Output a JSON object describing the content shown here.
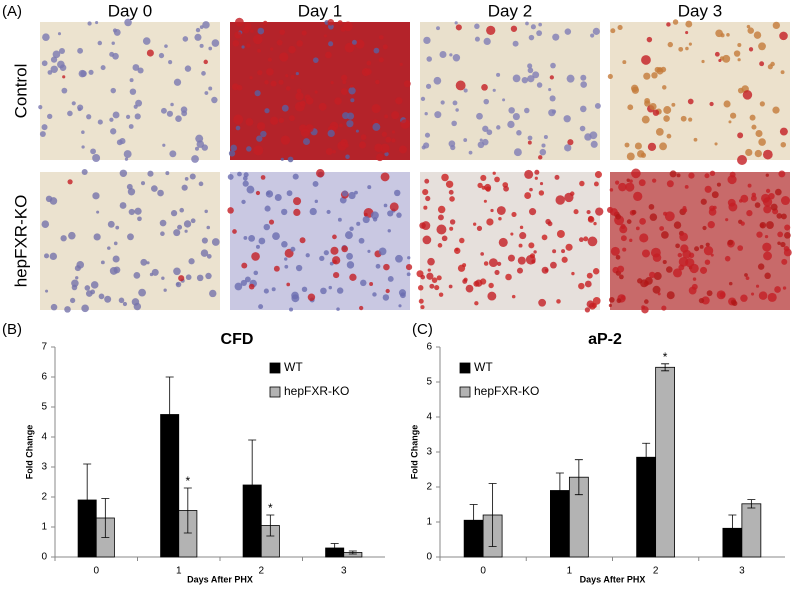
{
  "figure": {
    "panel_a_label": "(A)",
    "columns": [
      "Day 0",
      "Day 1",
      "Day 2",
      "Day 3"
    ],
    "rows": [
      "Control",
      "hepFXR-KO"
    ]
  },
  "chart_data": [
    {
      "type": "bar",
      "panel_label": "(B)",
      "title": "CFD",
      "x_label": "Days After PHX",
      "y_label": "Fold Change",
      "categories": [
        "0",
        "1",
        "2",
        "3"
      ],
      "ylim": [
        0,
        7
      ],
      "yticks": [
        0,
        1,
        2,
        3,
        4,
        5,
        6,
        7
      ],
      "legend": "upper right",
      "series": [
        {
          "name": "WT",
          "color": "#000000",
          "values": [
            1.9,
            4.75,
            2.4,
            0.3
          ],
          "errors": [
            1.2,
            1.25,
            1.5,
            0.15
          ],
          "significance": [
            null,
            null,
            null,
            null
          ]
        },
        {
          "name": "hepFXR-KO",
          "color": "#b3b3b3",
          "values": [
            1.3,
            1.55,
            1.05,
            0.15
          ],
          "errors": [
            0.65,
            0.75,
            0.35,
            0.05
          ],
          "significance": [
            null,
            "*",
            "*",
            null
          ]
        }
      ]
    },
    {
      "type": "bar",
      "panel_label": "(C)",
      "title": "aP-2",
      "x_label": "Days After PHX",
      "y_label": "Fold Change",
      "categories": [
        "0",
        "1",
        "2",
        "3"
      ],
      "ylim": [
        0,
        6
      ],
      "yticks": [
        0,
        1,
        2,
        3,
        4,
        5,
        6
      ],
      "legend": "upper left",
      "series": [
        {
          "name": "WT",
          "color": "#000000",
          "values": [
            1.05,
            1.9,
            2.85,
            0.82
          ],
          "errors": [
            0.45,
            0.5,
            0.4,
            0.38
          ],
          "significance": [
            null,
            null,
            null,
            null
          ]
        },
        {
          "name": "hepFXR-KO",
          "color": "#b3b3b3",
          "values": [
            1.2,
            2.28,
            5.42,
            1.52
          ],
          "errors": [
            0.9,
            0.5,
            0.1,
            0.12
          ],
          "significance": [
            null,
            null,
            "*",
            null
          ]
        }
      ]
    }
  ]
}
